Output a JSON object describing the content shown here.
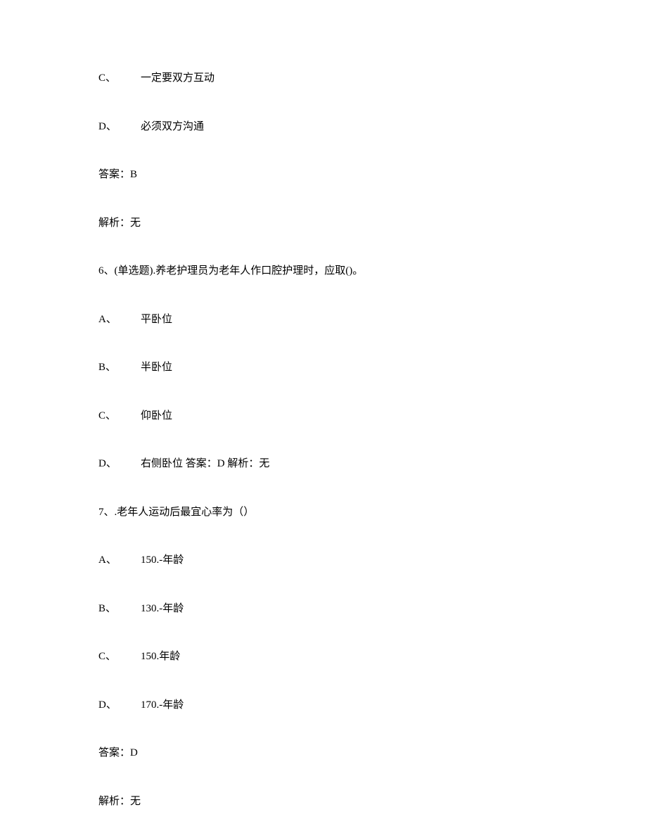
{
  "q5_tail": {
    "option_c": {
      "marker": "C、",
      "text": "一定要双方互动"
    },
    "option_d": {
      "marker": "D、",
      "text": "必须双方沟通"
    },
    "answer_line": "答案：B",
    "analysis_line": "解析：无"
  },
  "q6": {
    "stem": "6、(单选题).养老护理员为老年人作口腔护理时，应取()。",
    "option_a": {
      "marker": "A、",
      "text": "平卧位"
    },
    "option_b": {
      "marker": "B、",
      "text": "半卧位"
    },
    "option_c": {
      "marker": "C、",
      "text": "仰卧位"
    },
    "option_d": {
      "marker": "D、",
      "text": "右侧卧位 答案：D 解析：无"
    }
  },
  "q7": {
    "stem": "7、.老年人运动后最宜心率为（）",
    "option_a": {
      "marker": "A、",
      "text": "150.-年龄"
    },
    "option_b": {
      "marker": "B、",
      "text": "130.-年龄"
    },
    "option_c": {
      "marker": "C、",
      "text": "150.年龄"
    },
    "option_d": {
      "marker": "D、",
      "text": "170.-年龄"
    },
    "answer_line": "答案：D",
    "analysis_line": "解析：无"
  }
}
